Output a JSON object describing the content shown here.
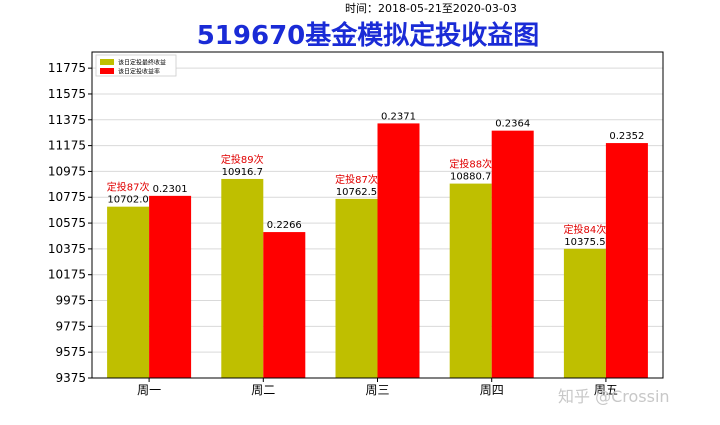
{
  "subtitle": "时间：2018-05-21至2020-03-03",
  "watermark": "知乎 @Crossin",
  "chart_data": {
    "type": "bar",
    "title": "519670基金模拟定投收益图",
    "categories": [
      "周一",
      "周二",
      "周三",
      "周四",
      "周五"
    ],
    "ylim": [
      9375,
      11900
    ],
    "yticks": [
      9375,
      9575,
      9775,
      9975,
      10175,
      10375,
      10575,
      10775,
      10975,
      11175,
      11375,
      11575,
      11775
    ],
    "grid": true,
    "legend_position": "top-left",
    "series": [
      {
        "name": "该日定投最终收益",
        "color": "#bfbf00",
        "values": [
          10702.0,
          10916.7,
          10762.5,
          10880.7,
          10375.5
        ],
        "labels": [
          "10702.0",
          "10916.7",
          "10762.5",
          "10880.7",
          "10375.5"
        ]
      },
      {
        "name": "该日定投收益率",
        "color": "#ff0000",
        "values": [
          0.2301,
          0.2266,
          0.2371,
          0.2364,
          0.2352
        ],
        "labels": [
          "0.2301",
          "0.2266",
          "0.2371",
          "0.2364",
          "0.2352"
        ]
      }
    ],
    "annotations": [
      "定投87次",
      "定投89次",
      "定投87次",
      "定投88次",
      "定投84次"
    ]
  }
}
